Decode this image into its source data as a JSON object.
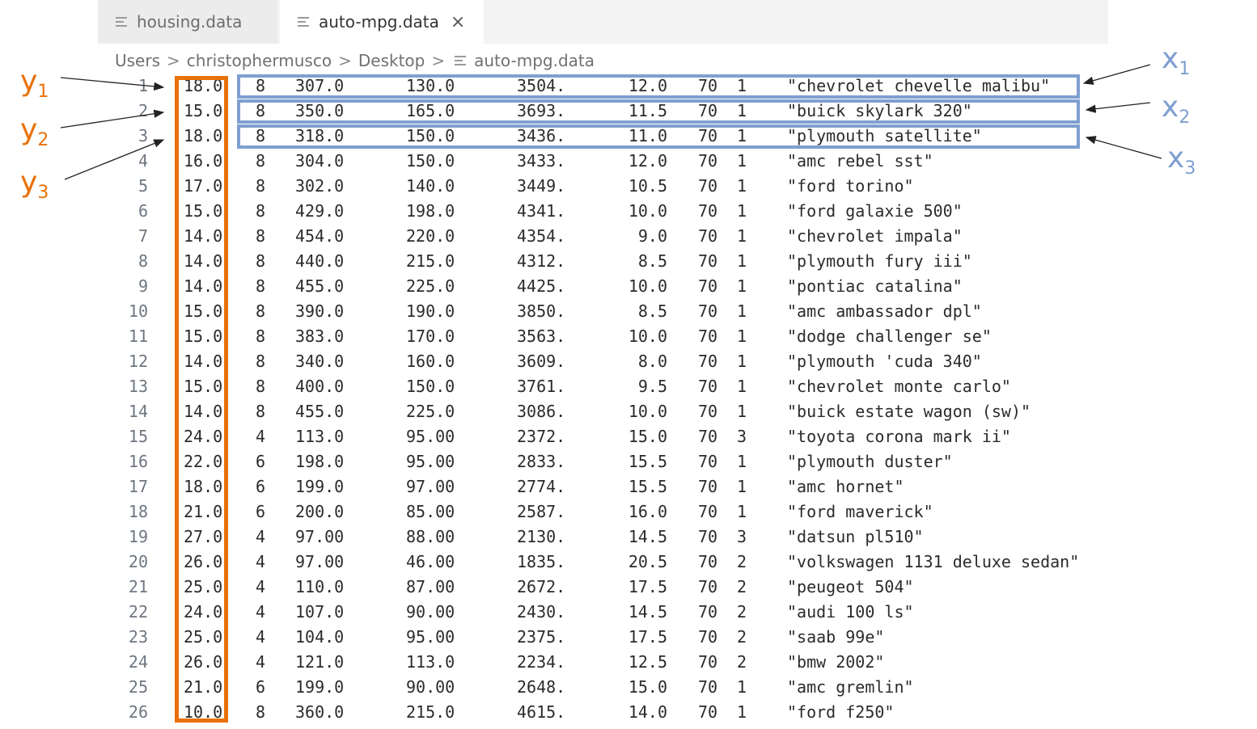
{
  "tabs": [
    {
      "label": "housing.data",
      "icon": "file-lines-icon",
      "active": false
    },
    {
      "label": "auto-mpg.data",
      "icon": "file-lines-icon",
      "active": true,
      "close": "×"
    }
  ],
  "breadcrumb": [
    "Users",
    "christophermusco",
    "Desktop",
    "auto-mpg.data"
  ],
  "rows": [
    [
      "1",
      "18.0",
      "8",
      "307.0",
      "130.0",
      "3504.",
      "12.0",
      "70",
      "1",
      "\"chevrolet chevelle malibu\""
    ],
    [
      "2",
      "15.0",
      "8",
      "350.0",
      "165.0",
      "3693.",
      "11.5",
      "70",
      "1",
      "\"buick skylark 320\""
    ],
    [
      "3",
      "18.0",
      "8",
      "318.0",
      "150.0",
      "3436.",
      "11.0",
      "70",
      "1",
      "\"plymouth satellite\""
    ],
    [
      "4",
      "16.0",
      "8",
      "304.0",
      "150.0",
      "3433.",
      "12.0",
      "70",
      "1",
      "\"amc rebel sst\""
    ],
    [
      "5",
      "17.0",
      "8",
      "302.0",
      "140.0",
      "3449.",
      "10.5",
      "70",
      "1",
      "\"ford torino\""
    ],
    [
      "6",
      "15.0",
      "8",
      "429.0",
      "198.0",
      "4341.",
      "10.0",
      "70",
      "1",
      "\"ford galaxie 500\""
    ],
    [
      "7",
      "14.0",
      "8",
      "454.0",
      "220.0",
      "4354.",
      "9.0",
      "70",
      "1",
      "\"chevrolet impala\""
    ],
    [
      "8",
      "14.0",
      "8",
      "440.0",
      "215.0",
      "4312.",
      "8.5",
      "70",
      "1",
      "\"plymouth fury iii\""
    ],
    [
      "9",
      "14.0",
      "8",
      "455.0",
      "225.0",
      "4425.",
      "10.0",
      "70",
      "1",
      "\"pontiac catalina\""
    ],
    [
      "10",
      "15.0",
      "8",
      "390.0",
      "190.0",
      "3850.",
      "8.5",
      "70",
      "1",
      "\"amc ambassador dpl\""
    ],
    [
      "11",
      "15.0",
      "8",
      "383.0",
      "170.0",
      "3563.",
      "10.0",
      "70",
      "1",
      "\"dodge challenger se\""
    ],
    [
      "12",
      "14.0",
      "8",
      "340.0",
      "160.0",
      "3609.",
      "8.0",
      "70",
      "1",
      "\"plymouth 'cuda 340\""
    ],
    [
      "13",
      "15.0",
      "8",
      "400.0",
      "150.0",
      "3761.",
      "9.5",
      "70",
      "1",
      "\"chevrolet monte carlo\""
    ],
    [
      "14",
      "14.0",
      "8",
      "455.0",
      "225.0",
      "3086.",
      "10.0",
      "70",
      "1",
      "\"buick estate wagon (sw)\""
    ],
    [
      "15",
      "24.0",
      "4",
      "113.0",
      "95.00",
      "2372.",
      "15.0",
      "70",
      "3",
      "\"toyota corona mark ii\""
    ],
    [
      "16",
      "22.0",
      "6",
      "198.0",
      "95.00",
      "2833.",
      "15.5",
      "70",
      "1",
      "\"plymouth duster\""
    ],
    [
      "17",
      "18.0",
      "6",
      "199.0",
      "97.00",
      "2774.",
      "15.5",
      "70",
      "1",
      "\"amc hornet\""
    ],
    [
      "18",
      "21.0",
      "6",
      "200.0",
      "85.00",
      "2587.",
      "16.0",
      "70",
      "1",
      "\"ford maverick\""
    ],
    [
      "19",
      "27.0",
      "4",
      "97.00",
      "88.00",
      "2130.",
      "14.5",
      "70",
      "3",
      "\"datsun pl510\""
    ],
    [
      "20",
      "26.0",
      "4",
      "97.00",
      "46.00",
      "1835.",
      "20.5",
      "70",
      "2",
      "\"volkswagen 1131 deluxe sedan\""
    ],
    [
      "21",
      "25.0",
      "4",
      "110.0",
      "87.00",
      "2672.",
      "17.5",
      "70",
      "2",
      "\"peugeot 504\""
    ],
    [
      "22",
      "24.0",
      "4",
      "107.0",
      "90.00",
      "2430.",
      "14.5",
      "70",
      "2",
      "\"audi 100 ls\""
    ],
    [
      "23",
      "25.0",
      "4",
      "104.0",
      "95.00",
      "2375.",
      "17.5",
      "70",
      "2",
      "\"saab 99e\""
    ],
    [
      "24",
      "26.0",
      "4",
      "121.0",
      "113.0",
      "2234.",
      "12.5",
      "70",
      "2",
      "\"bmw 2002\""
    ],
    [
      "25",
      "21.0",
      "6",
      "199.0",
      "90.00",
      "2648.",
      "15.0",
      "70",
      "1",
      "\"amc gremlin\""
    ],
    [
      "26",
      "10.0",
      "8",
      "360.0",
      "215.0",
      "4615.",
      "14.0",
      "70",
      "1",
      "\"ford f250\""
    ]
  ],
  "annotations": {
    "y_labels": [
      {
        "base": "y",
        "sub": "1"
      },
      {
        "base": "y",
        "sub": "2"
      },
      {
        "base": "y",
        "sub": "3"
      }
    ],
    "x_labels": [
      {
        "base": "x",
        "sub": "1"
      },
      {
        "base": "x",
        "sub": "2"
      },
      {
        "base": "x",
        "sub": "3"
      }
    ],
    "y_color": "#e8710a",
    "x_color": "#7f9fd0"
  }
}
